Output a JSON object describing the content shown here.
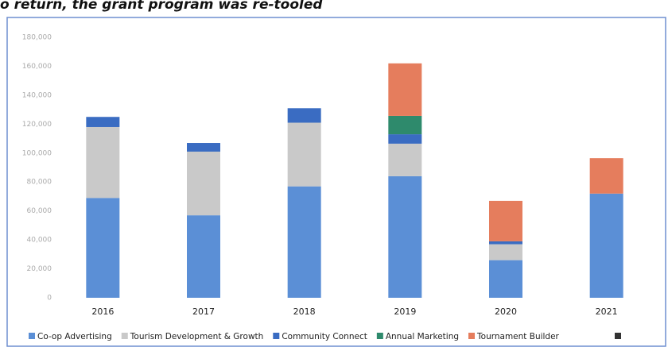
{
  "heading": "o return, the grant program was re-tooled",
  "chart_data": {
    "type": "stacked-bar",
    "categories": [
      "2016",
      "2017",
      "2018",
      "2019",
      "2020",
      "2021"
    ],
    "series": [
      {
        "name": "Co-op Advertising",
        "color": "#5b8fd6",
        "values": [
          69000,
          57000,
          77000,
          84000,
          26000,
          72000
        ]
      },
      {
        "name": "Tourism Development & Growth",
        "color": "#c9c9c9",
        "values": [
          49000,
          44000,
          44000,
          22500,
          11000,
          0
        ]
      },
      {
        "name": "Community Connect",
        "color": "#3a6cc2",
        "values": [
          7000,
          6000,
          10000,
          6500,
          2000,
          0
        ]
      },
      {
        "name": "Annual Marketing",
        "color": "#2e8a6c",
        "values": [
          0,
          0,
          0,
          12700,
          0,
          0
        ]
      },
      {
        "name": "Tournament Builder",
        "color": "#e57d5d",
        "values": [
          0,
          0,
          0,
          36300,
          28000,
          24500
        ]
      }
    ],
    "ylim": [
      0,
      180000
    ],
    "yticks": [
      0,
      {
        "value": 20000,
        "label": "20,000"
      },
      {
        "value": 40000,
        "label": "40,000"
      },
      {
        "value": 60000,
        "label": "60,000"
      },
      {
        "value": 80000,
        "label": "80,000"
      },
      {
        "value": 100000,
        "label": "100,000"
      },
      {
        "value": 120000,
        "label": "120,000"
      },
      {
        "value": 140000,
        "label": "140,000"
      },
      {
        "value": 160000,
        "label": "160,000"
      },
      {
        "value": 180000,
        "label": "180,000"
      }
    ],
    "grid": false,
    "legend": "bottom"
  }
}
